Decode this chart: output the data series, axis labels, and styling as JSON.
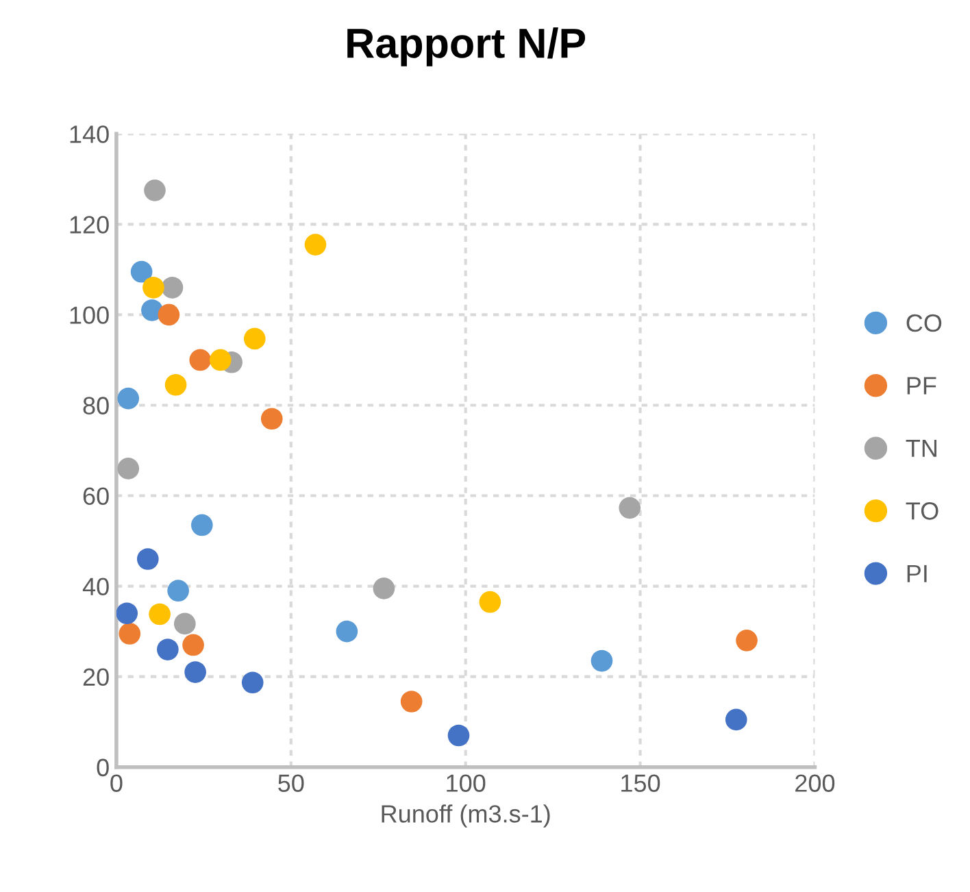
{
  "chart_data": {
    "type": "scatter",
    "title": "Rapport N/P",
    "xlabel": "Runoff (m3.s-1)",
    "xlim": [
      0,
      200
    ],
    "ylim": [
      0,
      140
    ],
    "xticks": [
      0,
      50,
      100,
      150,
      200
    ],
    "yticks": [
      0,
      20,
      40,
      60,
      80,
      100,
      120,
      140
    ],
    "grid": true,
    "legend": "right",
    "marker": "circle",
    "series": [
      {
        "name": "CO",
        "color": "#5b9bd5",
        "x": [
          7.2,
          10.2,
          3.4,
          24.5,
          17.7,
          66,
          139
        ],
        "values": [
          109.5,
          101,
          81.5,
          53.5,
          39,
          30,
          23.5
        ]
      },
      {
        "name": "PF",
        "color": "#ed7d31",
        "x": [
          15,
          24,
          44.5,
          3.8,
          22,
          84.5,
          180.5
        ],
        "values": [
          100,
          90,
          77,
          29.5,
          27,
          14.5,
          28
        ]
      },
      {
        "name": "TN",
        "color": "#a5a5a5",
        "x": [
          11,
          16,
          33,
          3.4,
          19.6,
          76.6,
          147
        ],
        "values": [
          127.5,
          106,
          89.5,
          66,
          31.7,
          39.5,
          57.3
        ]
      },
      {
        "name": "TO",
        "color": "#ffc000",
        "x": [
          10.6,
          57,
          17,
          39.6,
          29.8,
          12.4,
          107
        ],
        "values": [
          106,
          115.5,
          84.5,
          94.7,
          90,
          33.8,
          36.5
        ]
      },
      {
        "name": "PI",
        "color": "#4472c4",
        "x": [
          9,
          3,
          14.7,
          22.6,
          39,
          98,
          177.5
        ],
        "values": [
          46,
          34,
          26,
          21,
          18.7,
          7,
          10.5
        ]
      }
    ]
  }
}
